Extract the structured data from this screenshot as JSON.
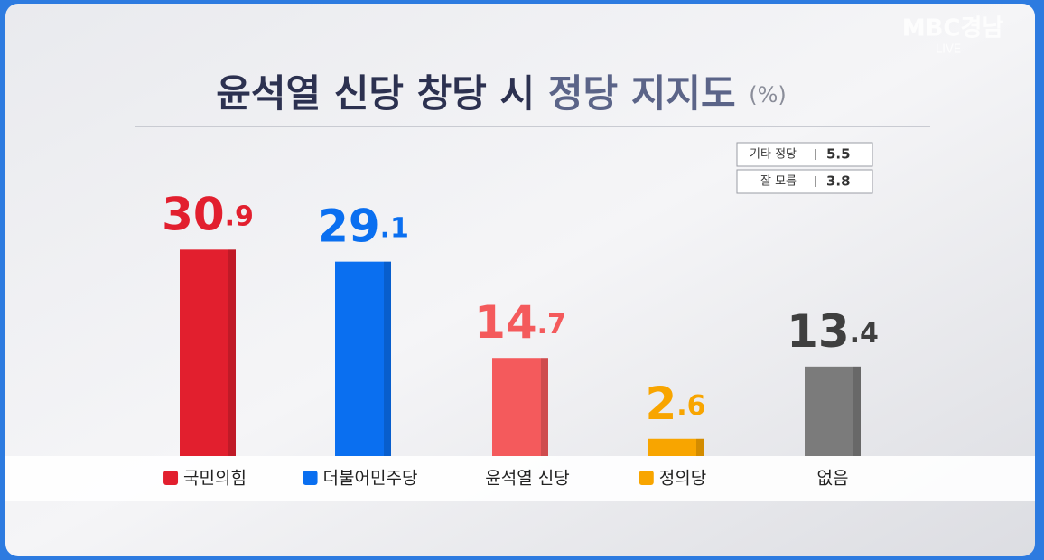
{
  "broadcaster": "MBC경남",
  "live": "LIVE",
  "chart_data": {
    "type": "bar",
    "title": "윤석열 신당 창당 시",
    "title_highlight": "정당 지지도",
    "unit": "(%)",
    "categories": [
      "국민의힘",
      "더불어민주당",
      "윤석열 신당",
      "정의당",
      "없음"
    ],
    "values": [
      30.9,
      29.1,
      14.7,
      2.6,
      13.4
    ],
    "colors": [
      "#e21f2e",
      "#0a6ff0",
      "#f45a5c",
      "#f8a500",
      "#7b7b7b"
    ],
    "label_colors": [
      "#e21f2e",
      "#0a6ff0",
      "#f45a5c",
      "#f8a500",
      "#3f3f3f"
    ],
    "notes": [
      {
        "label": "기타 정당",
        "value": 5.5
      },
      {
        "label": "잘 모름",
        "value": 3.8
      }
    ]
  }
}
